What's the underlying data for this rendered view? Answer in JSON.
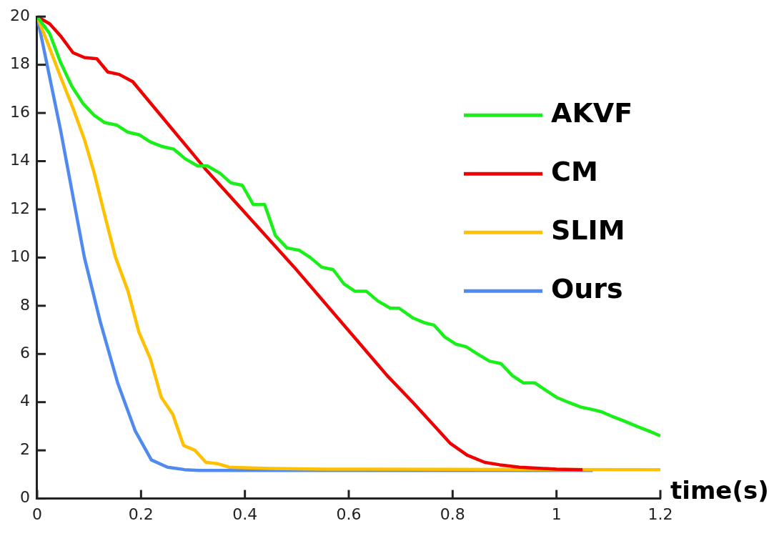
{
  "chart_data": {
    "type": "line",
    "xlabel": "time(s)",
    "xlim": [
      0,
      1.2
    ],
    "xticks": [
      0,
      0.2,
      0.4,
      0.6,
      0.8,
      1,
      1.2
    ],
    "ylim": [
      0,
      20
    ],
    "yticks": [
      0,
      2,
      4,
      6,
      8,
      10,
      12,
      14,
      16,
      18,
      20
    ],
    "legend": "top right",
    "marker": "none",
    "line_style": "solid",
    "series": [
      {
        "name": "AKVF",
        "color": "#19f019",
        "x": [
          0,
          0.024,
          0.045,
          0.067,
          0.088,
          0.11,
          0.13,
          0.153,
          0.175,
          0.196,
          0.218,
          0.242,
          0.263,
          0.285,
          0.309,
          0.328,
          0.352,
          0.373,
          0.395,
          0.416,
          0.438,
          0.459,
          0.481,
          0.505,
          0.526,
          0.548,
          0.57,
          0.591,
          0.612,
          0.634,
          0.656,
          0.68,
          0.697,
          0.723,
          0.745,
          0.764,
          0.785,
          0.807,
          0.826,
          0.848,
          0.871,
          0.893,
          0.915,
          0.936,
          0.958,
          0.979,
          1.0,
          1.022,
          1.046,
          1.068,
          1.087,
          1.108,
          1.132,
          1.154,
          1.178,
          1.2
        ],
        "values": [
          20,
          19.3,
          18.1,
          17.1,
          16.4,
          15.9,
          15.6,
          15.5,
          15.2,
          15.1,
          14.8,
          14.6,
          14.5,
          14.1,
          13.8,
          13.8,
          13.5,
          13.1,
          13.0,
          12.2,
          12.2,
          10.9,
          10.4,
          10.3,
          10.0,
          9.6,
          9.5,
          8.9,
          8.6,
          8.6,
          8.2,
          7.9,
          7.9,
          7.5,
          7.3,
          7.2,
          6.7,
          6.4,
          6.3,
          6.0,
          5.7,
          5.6,
          5.1,
          4.8,
          4.8,
          4.5,
          4.2,
          4.0,
          3.8,
          3.7,
          3.6,
          3.4,
          3.2,
          3.0,
          2.8,
          2.6
        ]
      },
      {
        "name": "CM",
        "color": "#f00000",
        "x": [
          0,
          0.024,
          0.045,
          0.069,
          0.091,
          0.115,
          0.136,
          0.158,
          0.184,
          0.323,
          0.495,
          0.674,
          0.723,
          0.757,
          0.795,
          0.828,
          0.862,
          0.891,
          0.929,
          1.0,
          1.05
        ],
        "values": [
          20,
          19.7,
          19.2,
          18.5,
          18.3,
          18.25,
          17.7,
          17.6,
          17.3,
          13.7,
          9.6,
          5.1,
          4.0,
          3.2,
          2.3,
          1.8,
          1.5,
          1.4,
          1.3,
          1.22,
          1.2
        ]
      },
      {
        "name": "SLIM",
        "color": "#ffc000",
        "x": [
          0,
          0.022,
          0.045,
          0.069,
          0.091,
          0.11,
          0.132,
          0.151,
          0.175,
          0.196,
          0.218,
          0.239,
          0.261,
          0.282,
          0.304,
          0.325,
          0.347,
          0.37,
          0.4,
          0.45,
          0.55,
          1.2
        ],
        "values": [
          20,
          18.8,
          17.5,
          16.2,
          14.9,
          13.5,
          11.6,
          10.0,
          8.6,
          6.9,
          5.8,
          4.2,
          3.5,
          2.2,
          2.0,
          1.5,
          1.45,
          1.3,
          1.28,
          1.25,
          1.22,
          1.2
        ]
      },
      {
        "name": "Ours",
        "color": "#508af0",
        "x": [
          0,
          0.045,
          0.091,
          0.122,
          0.155,
          0.189,
          0.22,
          0.251,
          0.284,
          0.312,
          1.07
        ],
        "values": [
          20,
          15.3,
          10.0,
          7.3,
          4.8,
          2.8,
          1.6,
          1.3,
          1.2,
          1.17,
          1.17
        ]
      }
    ]
  }
}
